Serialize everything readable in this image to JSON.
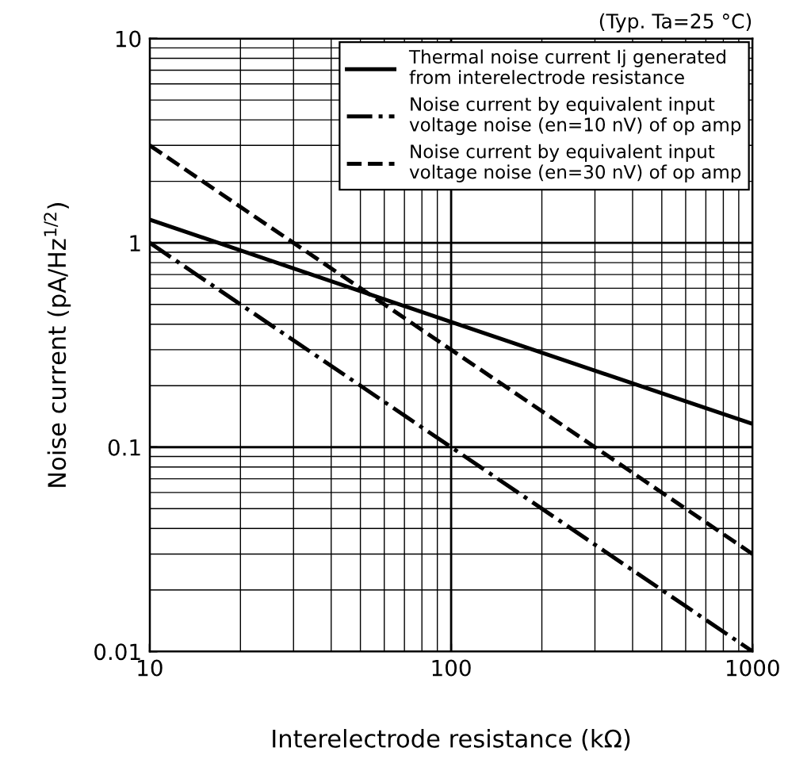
{
  "chart_data": {
    "type": "line",
    "xlabel": "Interelectrode resistance (kΩ)",
    "ylabel": "Noise current (pA/Hz$^{1/2}$)",
    "annotations": [
      "(Typ. Ta=25 °C)"
    ],
    "x": [
      10,
      100,
      1000
    ],
    "series": [
      {
        "name": "Thermal noise current Ij generated\nfrom interelectrode resistance",
        "color": "#000000",
        "line_style": "solid",
        "values": [
          1.3,
          0.41,
          0.13
        ]
      },
      {
        "name": "Noise current by equivalent input\nvoltage noise (en=10 nV) of op amp",
        "color": "#000000",
        "line_style": "dashdot",
        "values": [
          1,
          0.1,
          0.01
        ]
      },
      {
        "name": "Noise current by equivalent input\nvoltage noise (en=30 nV) of op amp",
        "color": "#000000",
        "line_style": "dashed",
        "values": [
          3,
          0.3,
          0.03
        ]
      }
    ],
    "log": "xy",
    "xlim": [
      10,
      1000
    ],
    "ylim": [
      0.01,
      10
    ],
    "xticks": [
      10,
      100,
      1000
    ],
    "yticks": [
      0.01,
      0.1,
      1,
      10
    ],
    "grid": true,
    "legend": "top right",
    "marker": "none"
  }
}
